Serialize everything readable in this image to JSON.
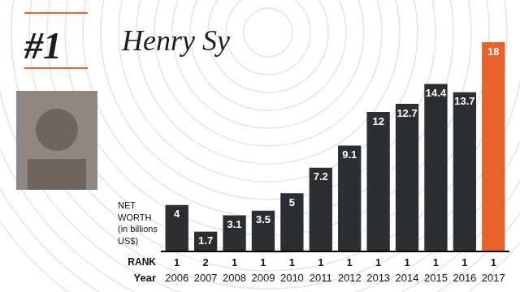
{
  "chart_data": {
    "type": "bar",
    "badge": "#1",
    "title": "Henry Sy",
    "y_label": "NET\nWORTH\n(in billions\nUS$)",
    "x_label": "Year",
    "rank_label": "RANK",
    "categories": [
      "2006",
      "2007",
      "2008",
      "2009",
      "2010",
      "2011",
      "2012",
      "2013",
      "2014",
      "2015",
      "2016",
      "2017"
    ],
    "values": [
      4,
      1.7,
      3.1,
      3.5,
      5,
      7.2,
      9.1,
      12,
      12.7,
      14.4,
      13.7,
      18
    ],
    "ranks": [
      1,
      2,
      1,
      1,
      1,
      1,
      1,
      1,
      1,
      1,
      1,
      1
    ],
    "colors": [
      "#2b2f33",
      "#2b2f33",
      "#2b2f33",
      "#2b2f33",
      "#2b2f33",
      "#2b2f33",
      "#2b2f33",
      "#2b2f33",
      "#2b2f33",
      "#2b2f33",
      "#2b2f33",
      "#e8632b"
    ],
    "ylim": [
      0,
      18
    ],
    "grid": false,
    "data_labels": true,
    "tick_labels": "x"
  }
}
